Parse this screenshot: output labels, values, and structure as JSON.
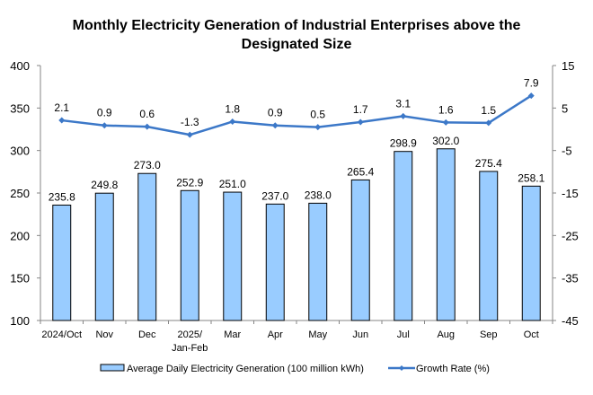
{
  "chart_data": {
    "type": "bar",
    "title": "Monthly Electricity Generation of Industrial Enterprises above the Designated Size",
    "title_lines": [
      "Monthly Electricity Generation of Industrial Enterprises above the",
      "Designated Size"
    ],
    "categories": [
      "2024/Oct",
      "Nov",
      "Dec",
      "2025/\nJan-Feb",
      "Mar",
      "Apr",
      "May",
      "Jun",
      "Jul",
      "Aug",
      "Sep",
      "Oct"
    ],
    "series": [
      {
        "name": "Average Daily Electricity Generation (100 million kWh)",
        "type": "bar",
        "axis": "left",
        "color": "#99CCFF",
        "values": [
          235.8,
          249.8,
          273.0,
          252.9,
          251.0,
          237.0,
          238.0,
          265.4,
          298.9,
          302.0,
          275.4,
          258.1
        ]
      },
      {
        "name": "Growth Rate (%)",
        "type": "line",
        "axis": "right",
        "color": "#3C78C8",
        "values": [
          2.1,
          0.9,
          0.6,
          -1.3,
          1.8,
          0.9,
          0.5,
          1.7,
          3.1,
          1.6,
          1.5,
          7.9
        ]
      }
    ],
    "y_left": {
      "range": [
        100,
        400
      ],
      "ticks": [
        100,
        150,
        200,
        250,
        300,
        350,
        400
      ]
    },
    "y_right": {
      "range": [
        -45,
        15
      ],
      "ticks": [
        -45,
        -35,
        -25,
        -15,
        -5,
        5,
        15
      ]
    },
    "xlabel": "",
    "ylabel": "",
    "grid": false,
    "legend_position": "bottom"
  }
}
